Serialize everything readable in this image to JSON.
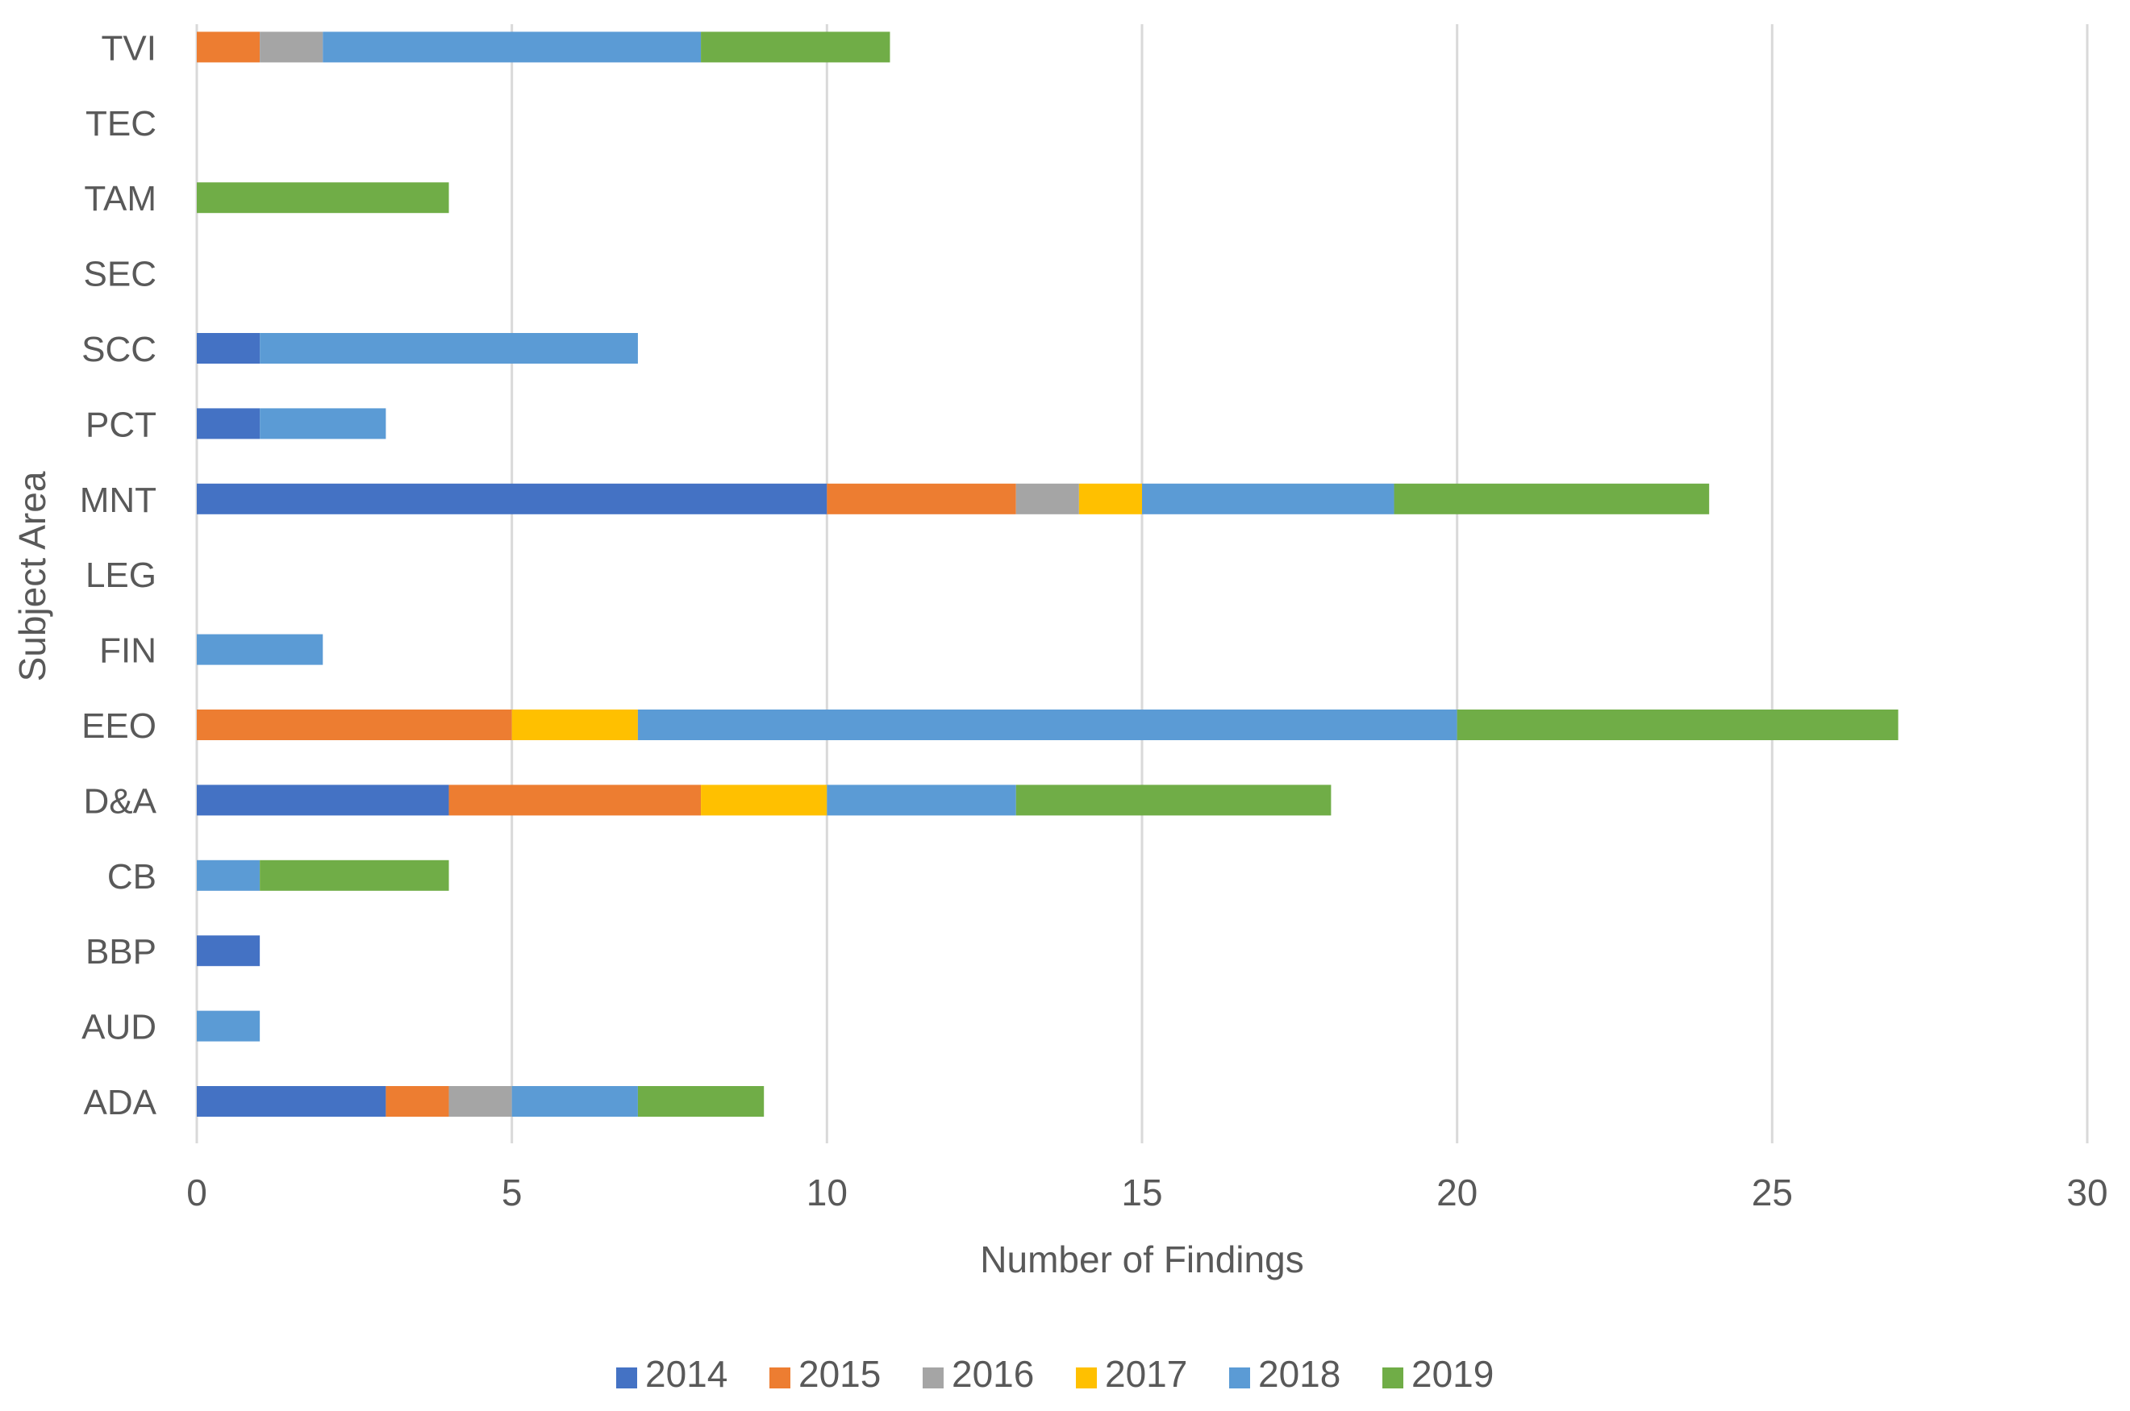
{
  "chart_data": {
    "type": "bar",
    "orientation": "horizontal",
    "stacked": true,
    "title": "",
    "xlabel": "Number of Findings",
    "ylabel": "Subject Area",
    "xlim": [
      0,
      30
    ],
    "xticks": [
      0,
      5,
      10,
      15,
      20,
      25,
      30
    ],
    "grid": "vertical",
    "legend_position": "bottom",
    "categories": [
      "ADA",
      "AUD",
      "BBP",
      "CB",
      "D&A",
      "EEO",
      "FIN",
      "LEG",
      "MNT",
      "PCT",
      "SCC",
      "SEC",
      "TAM",
      "TEC",
      "TVI"
    ],
    "series": [
      {
        "name": "2014",
        "color": "#4472C4",
        "values": [
          3,
          0,
          1,
          0,
          4,
          0,
          0,
          0,
          10,
          1,
          1,
          0,
          0,
          0,
          0
        ]
      },
      {
        "name": "2015",
        "color": "#ED7D31",
        "values": [
          1,
          0,
          0,
          0,
          4,
          5,
          0,
          0,
          3,
          0,
          0,
          0,
          0,
          0,
          1
        ]
      },
      {
        "name": "2016",
        "color": "#A5A5A5",
        "values": [
          1,
          0,
          0,
          0,
          0,
          0,
          0,
          0,
          1,
          0,
          0,
          0,
          0,
          0,
          1
        ]
      },
      {
        "name": "2017",
        "color": "#FFC000",
        "values": [
          0,
          0,
          0,
          0,
          2,
          2,
          0,
          0,
          1,
          0,
          0,
          0,
          0,
          0,
          0
        ]
      },
      {
        "name": "2018",
        "color": "#5B9BD5",
        "values": [
          2,
          1,
          0,
          1,
          3,
          13,
          2,
          0,
          4,
          2,
          6,
          0,
          0,
          0,
          6
        ]
      },
      {
        "name": "2019",
        "color": "#70AD47",
        "values": [
          2,
          0,
          0,
          3,
          5,
          7,
          0,
          0,
          5,
          0,
          0,
          0,
          4,
          0,
          3
        ]
      }
    ]
  }
}
